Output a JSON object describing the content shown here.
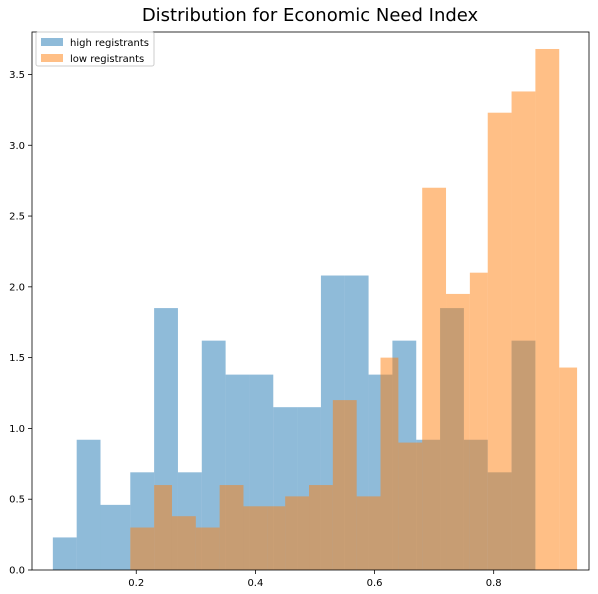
{
  "chart_data": {
    "type": "histogram",
    "title": "Distribution for Economic Need Index",
    "xlabel": "",
    "ylabel": "",
    "xlim": [
      0.025,
      0.96
    ],
    "ylim": [
      0,
      3.8
    ],
    "xticks": [
      0.2,
      0.4,
      0.6,
      0.8
    ],
    "yticks": [
      0.0,
      0.5,
      1.0,
      1.5,
      2.0,
      2.5,
      3.0,
      3.5
    ],
    "grid": false,
    "legend_position": "top-left",
    "series": [
      {
        "name": "high registrants",
        "color": "#1f77b4",
        "alpha": 0.5,
        "bins": [
          [
            0.06,
            0.1,
            0.23
          ],
          [
            0.1,
            0.14,
            0.92
          ],
          [
            0.14,
            0.19,
            0.46
          ],
          [
            0.19,
            0.23,
            0.69
          ],
          [
            0.23,
            0.27,
            1.85
          ],
          [
            0.27,
            0.31,
            0.69
          ],
          [
            0.31,
            0.35,
            1.62
          ],
          [
            0.35,
            0.39,
            1.38
          ],
          [
            0.39,
            0.43,
            1.38
          ],
          [
            0.43,
            0.47,
            1.15
          ],
          [
            0.47,
            0.51,
            1.15
          ],
          [
            0.51,
            0.55,
            2.08
          ],
          [
            0.55,
            0.59,
            2.08
          ],
          [
            0.59,
            0.63,
            1.38
          ],
          [
            0.63,
            0.67,
            1.62
          ],
          [
            0.67,
            0.71,
            0.92
          ],
          [
            0.71,
            0.75,
            1.85
          ],
          [
            0.75,
            0.79,
            0.92
          ],
          [
            0.79,
            0.83,
            0.69
          ],
          [
            0.83,
            0.87,
            1.62
          ]
        ]
      },
      {
        "name": "low registrants",
        "color": "#ff7f0e",
        "alpha": 0.5,
        "bins": [
          [
            0.19,
            0.23,
            0.3
          ],
          [
            0.23,
            0.26,
            0.6
          ],
          [
            0.26,
            0.3,
            0.38
          ],
          [
            0.3,
            0.34,
            0.3
          ],
          [
            0.34,
            0.38,
            0.6
          ],
          [
            0.38,
            0.42,
            0.45
          ],
          [
            0.42,
            0.45,
            0.45
          ],
          [
            0.45,
            0.49,
            0.52
          ],
          [
            0.49,
            0.53,
            0.6
          ],
          [
            0.53,
            0.57,
            1.2
          ],
          [
            0.57,
            0.61,
            0.52
          ],
          [
            0.61,
            0.64,
            1.5
          ],
          [
            0.64,
            0.68,
            0.9
          ],
          [
            0.68,
            0.72,
            2.7
          ],
          [
            0.72,
            0.76,
            1.95
          ],
          [
            0.76,
            0.79,
            2.1
          ],
          [
            0.79,
            0.83,
            3.23
          ],
          [
            0.83,
            0.87,
            3.38
          ],
          [
            0.87,
            0.91,
            3.68
          ],
          [
            0.91,
            0.94,
            1.43
          ]
        ]
      }
    ]
  }
}
